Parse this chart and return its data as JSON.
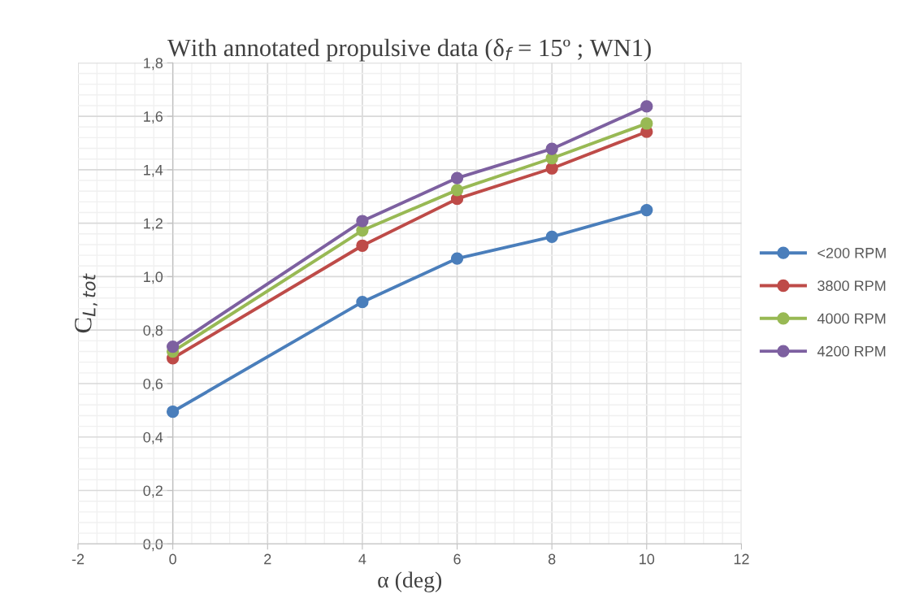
{
  "chart_data": {
    "type": "line",
    "title": "With annotated propulsive data (δ$_{f}$ = 15º ; WN1)",
    "xlabel": "α (deg)",
    "ylabel": "C$_{L,tot}$",
    "x": [
      0,
      4,
      6,
      8,
      10
    ],
    "series": [
      {
        "name": "<200 RPM",
        "color": "#4a7ebb",
        "values": [
          0.495,
          0.905,
          1.068,
          1.149,
          1.249
        ]
      },
      {
        "name": "3800 RPM",
        "color": "#be4b48",
        "values": [
          0.695,
          1.116,
          1.291,
          1.405,
          1.542
        ]
      },
      {
        "name": "4000 RPM",
        "color": "#98b954",
        "values": [
          0.72,
          1.173,
          1.324,
          1.443,
          1.573
        ]
      },
      {
        "name": "4200 RPM",
        "color": "#7d60a0",
        "values": [
          0.738,
          1.208,
          1.369,
          1.478,
          1.637
        ]
      }
    ],
    "xlim": [
      -2,
      12
    ],
    "xticks": [
      -2,
      0,
      2,
      4,
      6,
      8,
      10,
      12
    ],
    "ylim": [
      0,
      1.8
    ],
    "yticks": [
      {
        "value": 0,
        "label": "0,0"
      },
      {
        "value": 0.2,
        "label": "0,2"
      },
      {
        "value": 0.4,
        "label": "0,4"
      },
      {
        "value": 0.6,
        "label": "0,6"
      },
      {
        "value": 0.8,
        "label": "0,8"
      },
      {
        "value": 1.0,
        "label": "1,0"
      },
      {
        "value": 1.2,
        "label": "1,2"
      },
      {
        "value": 1.4,
        "label": "1,4"
      },
      {
        "value": 1.6,
        "label": "1,6"
      },
      {
        "value": 1.8,
        "label": "1,8"
      }
    ],
    "grid": true,
    "legend": "right",
    "marker": "circle",
    "line_style": "solid"
  }
}
